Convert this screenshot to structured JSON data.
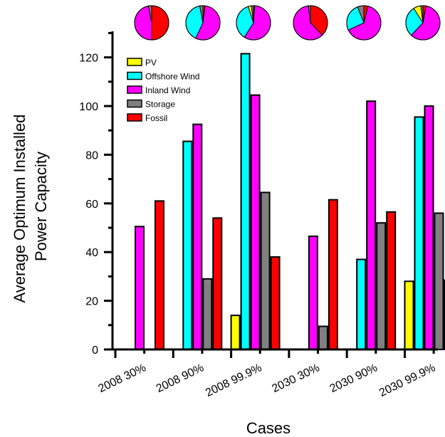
{
  "chart_data": {
    "type": "bar",
    "title": "",
    "xlabel": "Cases",
    "ylabel_lines": [
      "Average Optimum Installed",
      "Power Capacity"
    ],
    "categories": [
      "2008 30%",
      "2008 90%",
      "2008 99.9%",
      "2030 30%",
      "2030 90%",
      "2030 99.9%"
    ],
    "ylim": [
      0,
      130
    ],
    "yticks": [
      0,
      20,
      40,
      60,
      80,
      100,
      120
    ],
    "grid": false,
    "legend_position": "top-left",
    "series": [
      {
        "name": "PV",
        "color": "#ffff00",
        "values": [
          0,
          0,
          14,
          0,
          0,
          28
        ]
      },
      {
        "name": "Offshore Wind",
        "color": "#00ffff",
        "values": [
          0,
          85.5,
          121.5,
          0,
          37,
          95.5
        ]
      },
      {
        "name": "Inland Wind",
        "color": "#ff00ff",
        "values": [
          50.5,
          92.5,
          104.5,
          46.5,
          102,
          100
        ]
      },
      {
        "name": "Storage",
        "color": "#808080",
        "values": [
          0,
          29,
          64.5,
          9.5,
          52,
          56
        ]
      },
      {
        "name": "Fossil",
        "color": "#ff0000",
        "values": [
          61,
          54,
          38,
          61.5,
          56.5,
          28.5
        ]
      }
    ],
    "inset_pies": [
      [
        0,
        0,
        0.47,
        0.03,
        0.5
      ],
      [
        0,
        0.4,
        0.55,
        0.03,
        0.02
      ],
      [
        0.03,
        0.36,
        0.58,
        0.02,
        0.01
      ],
      [
        0,
        0,
        0.6,
        0.02,
        0.38
      ],
      [
        0,
        0.26,
        0.64,
        0.06,
        0.04
      ],
      [
        0.07,
        0.29,
        0.59,
        0.02,
        0.03
      ]
    ]
  }
}
